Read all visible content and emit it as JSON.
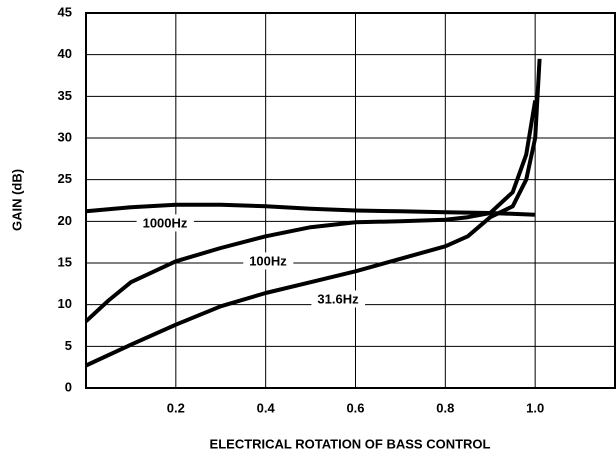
{
  "chart_data": {
    "type": "line",
    "x_label": "ELECTRICAL ROTATION OF BASS CONTROL",
    "y_label": "GAIN (dB)",
    "series": [
      {
        "name": "1000Hz",
        "color": "#000000",
        "x": [
          0,
          0.1,
          0.2,
          0.3,
          0.4,
          0.5,
          0.6,
          0.7,
          0.8,
          0.9,
          1.0
        ],
        "values": [
          21.2,
          21.7,
          22,
          22,
          21.8,
          21.5,
          21.3,
          21.2,
          21.1,
          21,
          20.8
        ]
      },
      {
        "name": "100Hz",
        "color": "#000000",
        "x": [
          0,
          0.05,
          0.1,
          0.2,
          0.3,
          0.4,
          0.5,
          0.6,
          0.7,
          0.8,
          0.85,
          0.9,
          0.95,
          0.98,
          1.0
        ],
        "values": [
          8,
          10.5,
          12.7,
          15.2,
          16.8,
          18.2,
          19.3,
          19.9,
          20,
          20.2,
          20.5,
          21,
          23.5,
          28,
          34.5
        ]
      },
      {
        "name": "31.6Hz",
        "color": "#000000",
        "x": [
          0,
          0.1,
          0.2,
          0.3,
          0.4,
          0.5,
          0.6,
          0.7,
          0.8,
          0.85,
          0.9,
          0.95,
          0.98,
          1.0,
          1.01
        ],
        "values": [
          2.7,
          5.2,
          7.6,
          9.8,
          11.4,
          12.7,
          14,
          15.5,
          17,
          18.2,
          20.5,
          21.8,
          25,
          30,
          39.5
        ]
      }
    ],
    "xlim": [
      0,
      1.18
    ],
    "xticks": [
      0.2,
      0.4,
      0.6,
      0.8,
      {
        "value": 1,
        "label": "1.0"
      }
    ],
    "ylim": [
      0,
      45
    ],
    "yticks": [
      0,
      5,
      10,
      15,
      20,
      25,
      30,
      35,
      40,
      45
    ],
    "grid": true
  }
}
